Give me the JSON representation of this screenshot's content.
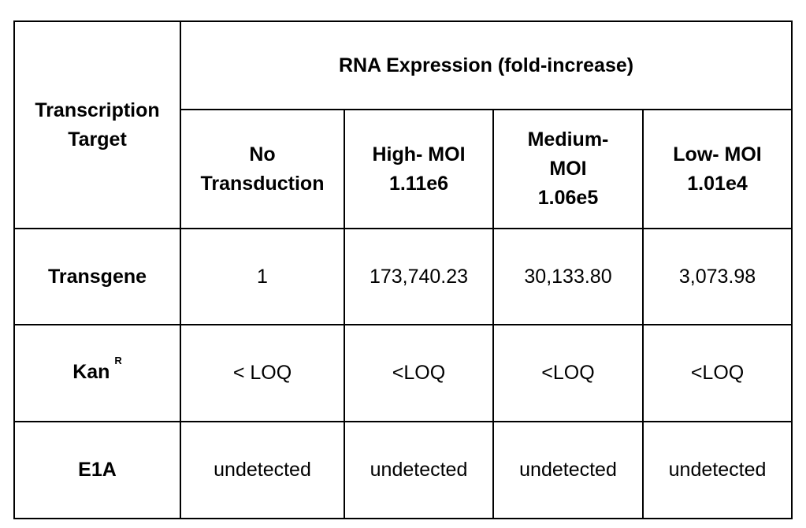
{
  "table": {
    "corner_header": [
      "Transcription",
      "Target"
    ],
    "group_header": "RNA Expression (fold-increase)",
    "columns": [
      {
        "lines": [
          "No",
          "Transduction"
        ]
      },
      {
        "lines": [
          "High- MOI",
          "1.11e6"
        ]
      },
      {
        "lines": [
          "Medium-",
          "MOI",
          "1.06e5"
        ]
      },
      {
        "lines": [
          "Low- MOI",
          "1.01e4"
        ]
      }
    ],
    "rows": [
      {
        "label": "Transgene",
        "label_sup": "",
        "cells": [
          "1",
          "173,740.23",
          "30,133.80",
          "3,073.98"
        ]
      },
      {
        "label": "Kan",
        "label_sup": "R",
        "cells": [
          "< LOQ",
          "<LOQ",
          "<LOQ",
          "<LOQ"
        ]
      },
      {
        "label": "E1A",
        "label_sup": "",
        "cells": [
          "undetected",
          "undetected",
          "undetected",
          "undetected"
        ]
      }
    ]
  }
}
